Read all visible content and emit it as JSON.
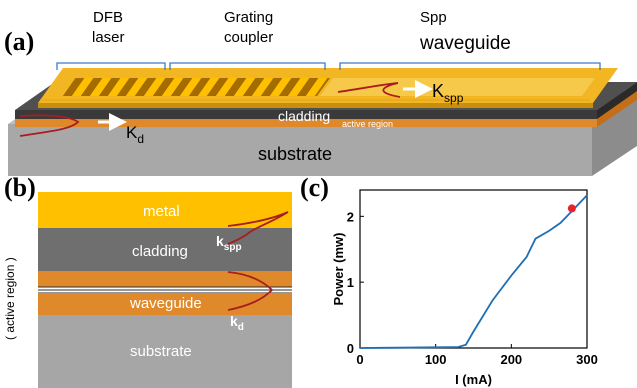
{
  "panel_a": {
    "label": "(a)",
    "section_labels": {
      "dfb_line1": "DFB",
      "dfb_line2": "laser",
      "grating_line1": "Grating",
      "grating_line2": "coupler",
      "spp_line1": "Spp",
      "spp_line2": "waveguide"
    },
    "k_spp_main": "K",
    "k_spp_sub": "spp",
    "k_d_main": "K",
    "k_d_sub": "d",
    "cladding": "cladding",
    "active_region": "active region",
    "substrate": "substrate"
  },
  "panel_b": {
    "label": "(b)",
    "side_label": "( active region )",
    "metal": "metal",
    "cladding": "cladding",
    "waveguide": "waveguide",
    "substrate": "substrate",
    "k_spp_main": "k",
    "k_spp_sub": "spp",
    "k_d_main": "k",
    "k_d_sub": "d"
  },
  "panel_c": {
    "label": "(c)"
  },
  "colors": {
    "gold": "#FFC000",
    "orange": "#E0892B",
    "cladding_gray": "#6F6F6F",
    "substrate_gray": "#A6A6A6",
    "mode_red": "#A81E1E",
    "curve_blue": "#1F6FB5",
    "marker_red": "#E8242A",
    "bracket_blue": "#3D7BC8"
  },
  "chart_data": {
    "type": "line",
    "xlabel": "I (mA)",
    "ylabel": "Power (mw)",
    "xlim": [
      0,
      300
    ],
    "ylim": [
      0,
      2.4
    ],
    "xticks": [
      0,
      100,
      200,
      300
    ],
    "yticks": [
      0,
      1,
      2
    ],
    "grid": false,
    "series": [
      {
        "x": [
          0,
          50,
          100,
          130,
          140,
          150,
          175,
          200,
          220,
          232,
          250,
          265,
          280,
          290,
          300
        ],
        "y": [
          0.0,
          0.005,
          0.01,
          0.015,
          0.05,
          0.25,
          0.72,
          1.1,
          1.38,
          1.66,
          1.78,
          1.9,
          2.08,
          2.2,
          2.32
        ]
      }
    ],
    "highlight_point": {
      "x": 280,
      "y": 2.12
    }
  }
}
